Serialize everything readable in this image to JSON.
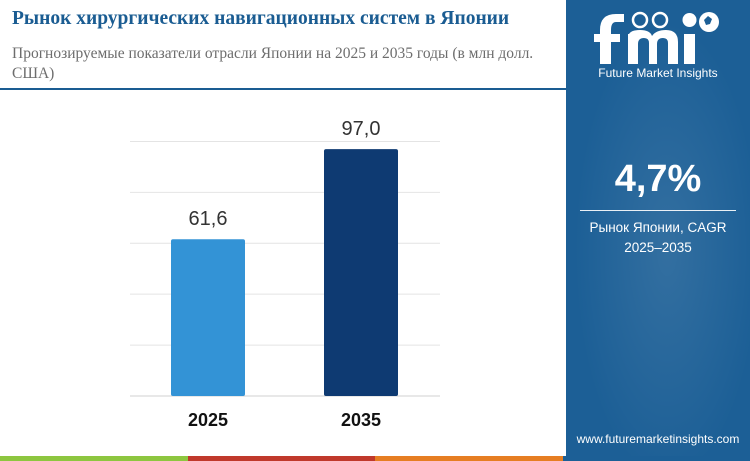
{
  "header": {
    "title": "Рынок хирургических навигационных систем в Японии",
    "subtitle": "Прогнозируемые показатели отрасли Японии на 2025 и 2035 годы (в млн долл. США)"
  },
  "chart_data": {
    "type": "bar",
    "categories": [
      "2025",
      "2035"
    ],
    "values": [
      61.6,
      97.0
    ],
    "value_labels": [
      "61,6",
      "97,0"
    ],
    "title": "",
    "xlabel": "",
    "ylabel": "",
    "ylim": [
      0,
      110
    ],
    "grid": true,
    "colors": [
      "#3393d6",
      "#0e3a72"
    ]
  },
  "sidebar": {
    "logo_caption": "Future Market Insights",
    "logo_icon": "fmi-logo",
    "cagr_value": "4,7%",
    "cagr_label_line1": "Рынок Японии, CAGR",
    "cagr_label_line2": "2025–2035",
    "website": "www.futuremarketinsights.com"
  },
  "colors": {
    "title": "#1a5c92",
    "sidebar": "#1c5f96",
    "bar_2025": "#3393d6",
    "bar_2035": "#0e3a72",
    "stripe": [
      "#8dc63f",
      "#c0392b",
      "#e67e22",
      "#1c5f96"
    ]
  }
}
